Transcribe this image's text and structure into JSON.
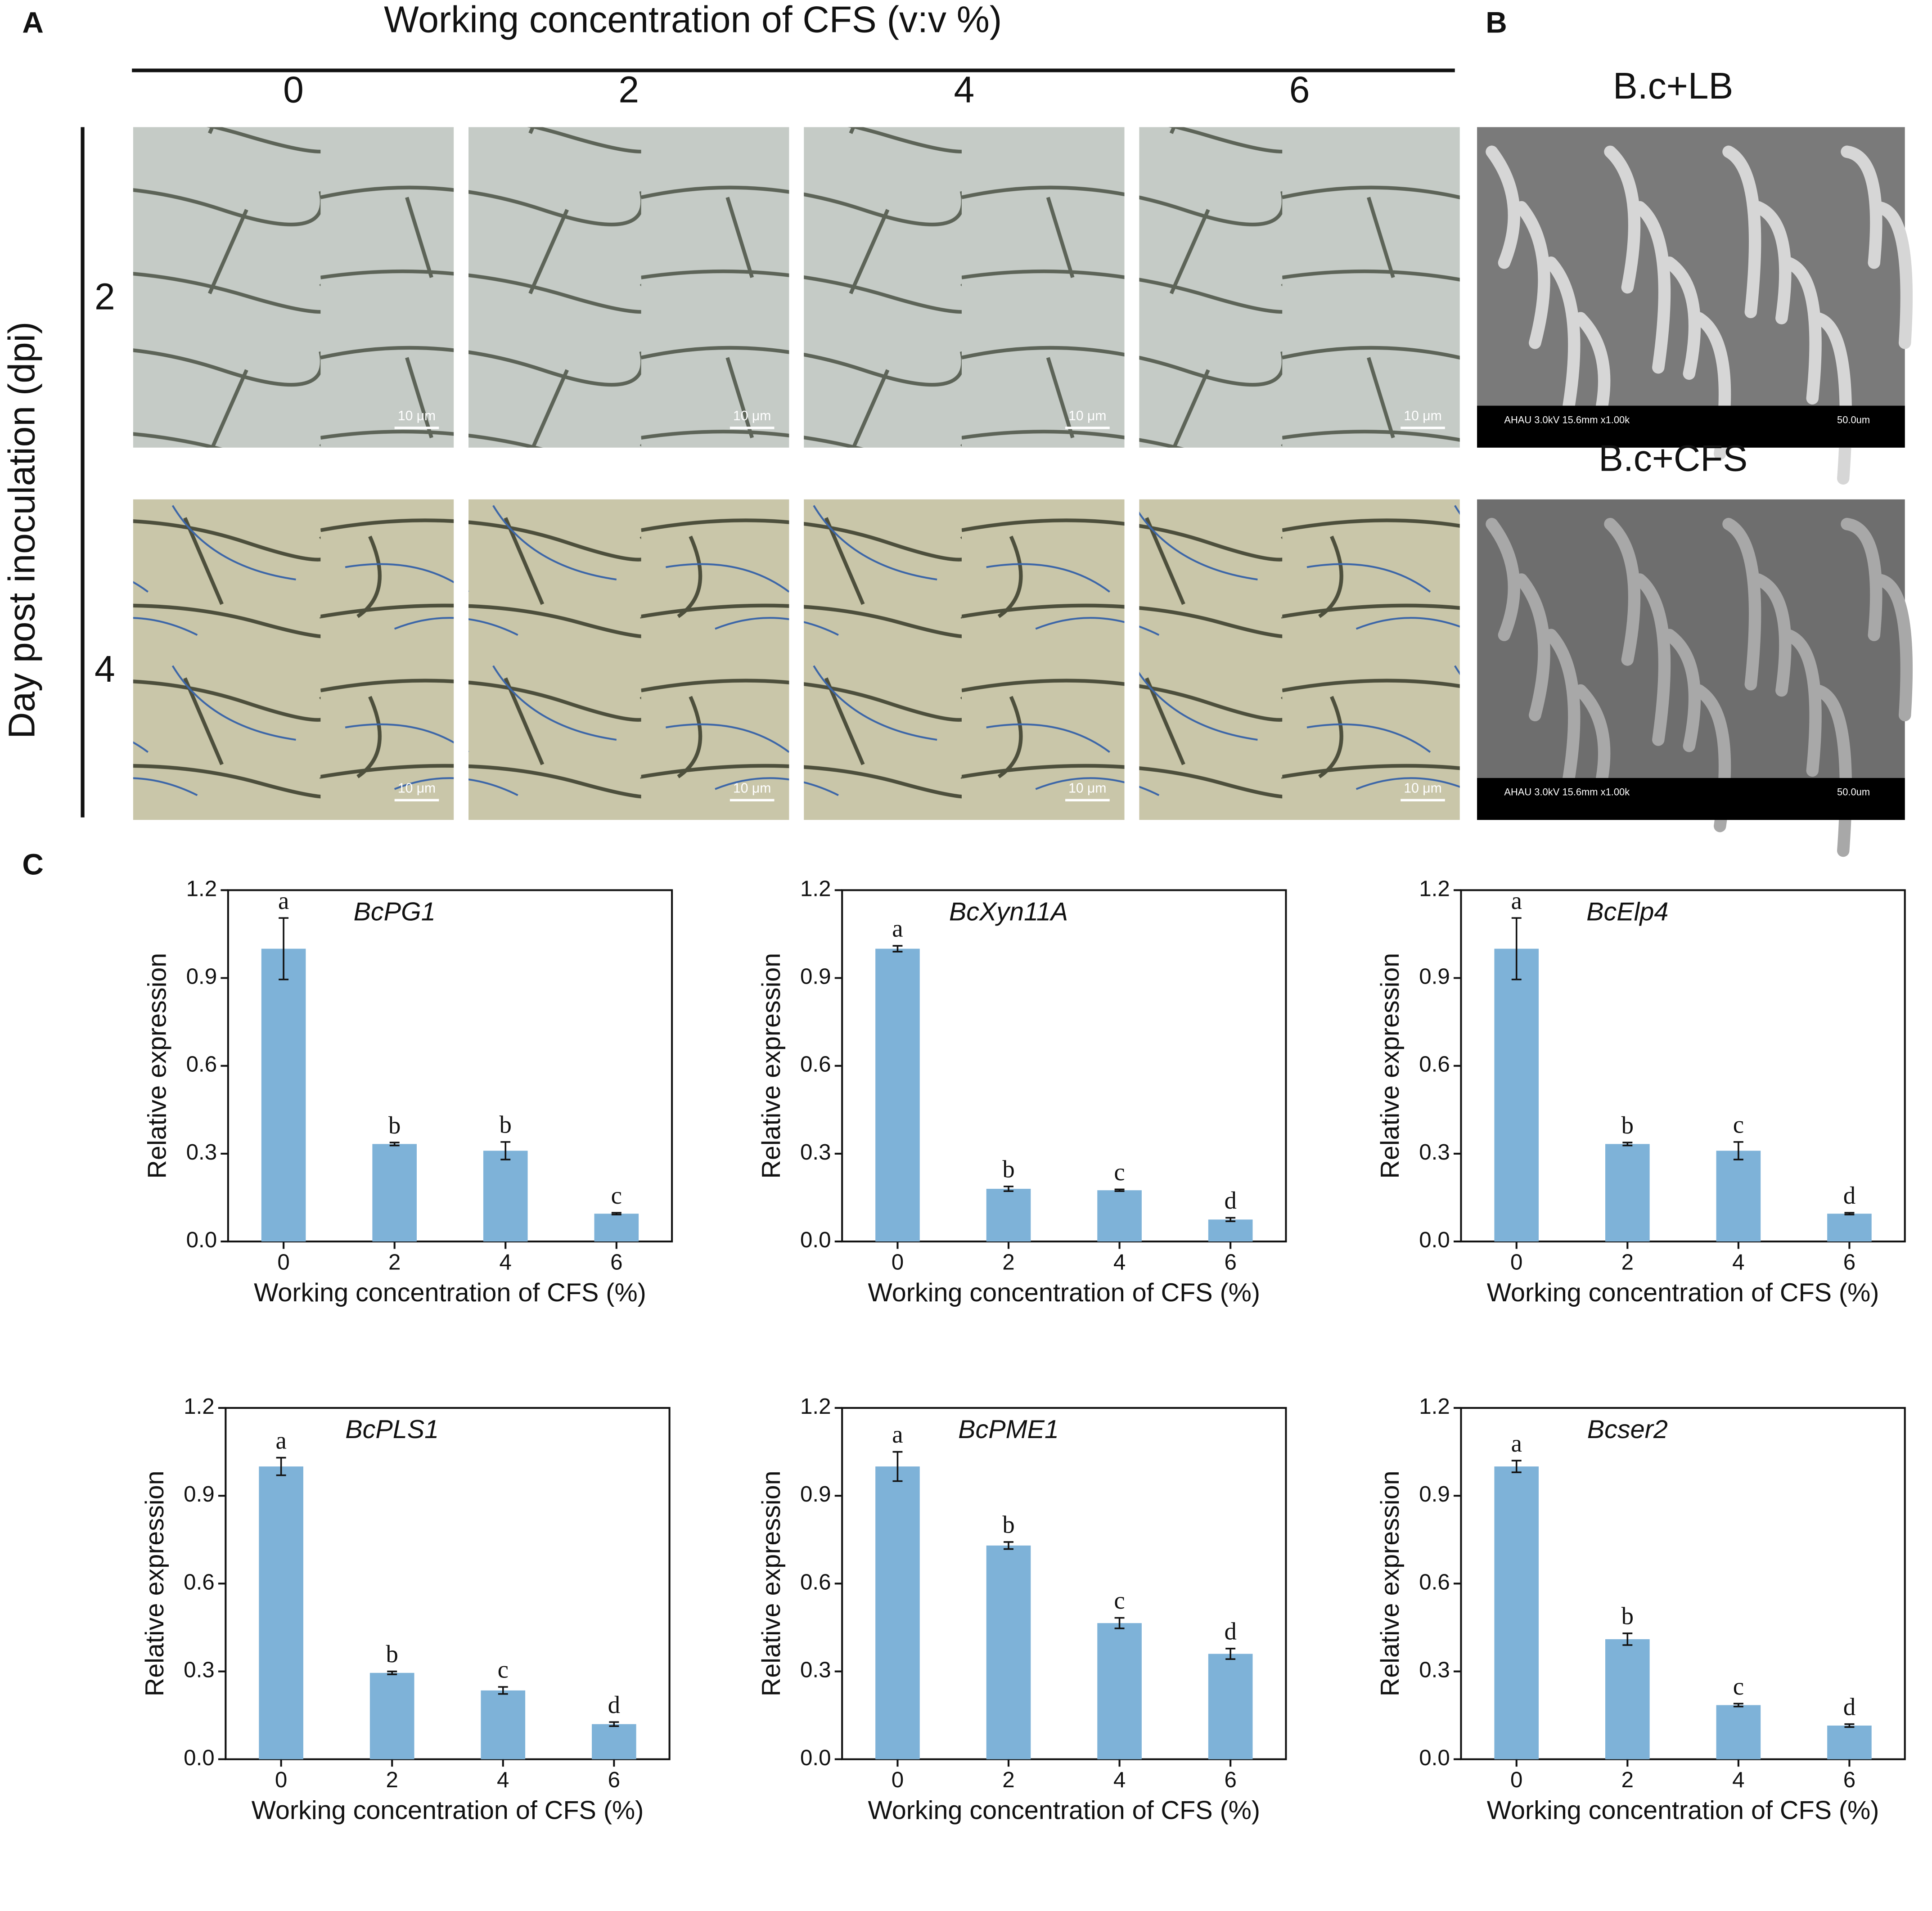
{
  "panel_a": {
    "label": "A",
    "title": "Working concentration of CFS  (v:v %)",
    "columns": [
      "0",
      "2",
      "4",
      "6"
    ],
    "rows": [
      "2",
      "4"
    ],
    "row_title": "Day post inoculation (dpi)",
    "scale_bar": "10 μm"
  },
  "panel_b": {
    "label": "B",
    "images": [
      "B.c+LB",
      "B.c+CFS"
    ],
    "sem_info": "AHAU 3.0kV 15.6mm x1.00k",
    "sem_scale": "50.0um"
  },
  "panel_c": {
    "label": "C"
  },
  "chart_data": [
    {
      "type": "bar",
      "title": "BcPG1",
      "categories": [
        "0",
        "2",
        "4",
        "6"
      ],
      "values": [
        1.0,
        0.333,
        0.31,
        0.095
      ],
      "errors": [
        0.105,
        0.005,
        0.03,
        0.003
      ],
      "letters": [
        "a",
        "b",
        "b",
        "c"
      ],
      "color": "#7eb2d8",
      "xlabel": "Working concentration of CFS (%)",
      "ylabel": "Relative expression",
      "ylim": [
        0,
        1.2
      ],
      "yticks": [
        {
          "value": 0,
          "label": "0.0"
        },
        0.3,
        0.6,
        0.9,
        1.2
      ]
    },
    {
      "type": "bar",
      "title": "BcXyn11A",
      "categories": [
        "0",
        "2",
        "4",
        "6"
      ],
      "values": [
        1.0,
        0.18,
        0.175,
        0.075
      ],
      "errors": [
        0.01,
        0.008,
        0.003,
        0.006
      ],
      "letters": [
        "a",
        "b",
        "c",
        "d"
      ],
      "color": "#7eb2d8",
      "xlabel": "Working concentration of CFS (%)",
      "ylabel": "Relative expression",
      "ylim": [
        0,
        1.2
      ],
      "yticks": [
        {
          "value": 0,
          "label": "0.0"
        },
        0.3,
        0.6,
        0.9,
        1.2
      ]
    },
    {
      "type": "bar",
      "title": "BcElp4",
      "categories": [
        "0",
        "2",
        "4",
        "6"
      ],
      "values": [
        1.0,
        0.333,
        0.31,
        0.095
      ],
      "errors": [
        0.105,
        0.005,
        0.03,
        0.003
      ],
      "letters": [
        "a",
        "b",
        "c",
        "d"
      ],
      "color": "#7eb2d8",
      "xlabel": "Working concentration of CFS (%)",
      "ylabel": "Relative expression",
      "ylim": [
        0,
        1.2
      ],
      "yticks": [
        {
          "value": 0,
          "label": "0.0"
        },
        0.3,
        0.6,
        0.9,
        1.2
      ]
    },
    {
      "type": "bar",
      "title": "BcPLS1",
      "categories": [
        "0",
        "2",
        "4",
        "6"
      ],
      "values": [
        1.0,
        0.295,
        0.235,
        0.12
      ],
      "errors": [
        0.03,
        0.005,
        0.012,
        0.007
      ],
      "letters": [
        "a",
        "b",
        "c",
        "d"
      ],
      "color": "#7eb2d8",
      "xlabel": "Working concentration of CFS (%)",
      "ylabel": "Relative expression",
      "ylim": [
        0,
        1.2
      ],
      "yticks": [
        {
          "value": 0,
          "label": "0.0"
        },
        0.3,
        0.6,
        0.9,
        1.2
      ]
    },
    {
      "type": "bar",
      "title": "BcPME1",
      "categories": [
        "0",
        "2",
        "4",
        "6"
      ],
      "values": [
        1.0,
        0.73,
        0.465,
        0.36
      ],
      "errors": [
        0.05,
        0.012,
        0.018,
        0.018
      ],
      "letters": [
        "a",
        "b",
        "c",
        "d"
      ],
      "color": "#7eb2d8",
      "xlabel": "Working concentration of CFS (%)",
      "ylabel": "Relative expression",
      "ylim": [
        0,
        1.2
      ],
      "yticks": [
        {
          "value": 0,
          "label": "0.0"
        },
        0.3,
        0.6,
        0.9,
        1.2
      ]
    },
    {
      "type": "bar",
      "title": "Bcser2",
      "categories": [
        "0",
        "2",
        "4",
        "6"
      ],
      "values": [
        1.0,
        0.41,
        0.185,
        0.115
      ],
      "errors": [
        0.02,
        0.02,
        0.005,
        0.005
      ],
      "letters": [
        "a",
        "b",
        "c",
        "d"
      ],
      "color": "#7eb2d8",
      "xlabel": "Working concentration of CFS (%)",
      "ylabel": "Relative expression",
      "ylim": [
        0,
        1.2
      ],
      "yticks": [
        {
          "value": 0,
          "label": "0.0"
        },
        0.3,
        0.6,
        0.9,
        1.2
      ]
    }
  ]
}
